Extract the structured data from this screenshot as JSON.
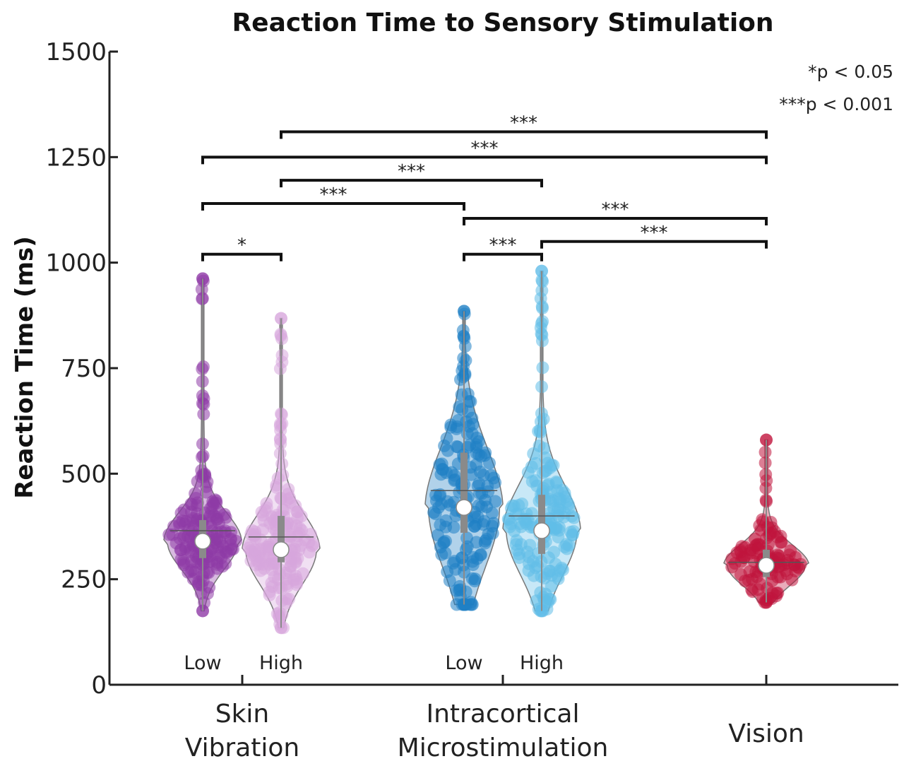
{
  "chart_data": {
    "type": "violin",
    "title": "Reaction Time to Sensory Stimulation",
    "ylabel": "Reaction Time (ms)",
    "xlabel": "",
    "ylim": [
      0,
      1500
    ],
    "yticks": [
      0,
      250,
      500,
      750,
      1000,
      1250,
      1500
    ],
    "groups": [
      {
        "label": "Skin\nVibration",
        "conditions": [
          "Low",
          "High"
        ]
      },
      {
        "label": "Intracortical\nMicrostimulation",
        "conditions": [
          "Low",
          "High"
        ]
      },
      {
        "label": "Vision",
        "conditions": []
      }
    ],
    "series": [
      {
        "group": "Skin Vibration",
        "condition": "Low",
        "color": "#8e3aa6",
        "median": 340,
        "mean": 365,
        "q1": 300,
        "q3": 390,
        "min": 175,
        "max": 962
      },
      {
        "group": "Skin Vibration",
        "condition": "High",
        "color": "#d7a6dc",
        "median": 320,
        "mean": 350,
        "q1": 290,
        "q3": 400,
        "min": 135,
        "max": 868
      },
      {
        "group": "Intracortical Microstimulation",
        "condition": "Low",
        "color": "#1f7fc4",
        "median": 420,
        "mean": 460,
        "q1": 360,
        "q3": 550,
        "min": 190,
        "max": 885
      },
      {
        "group": "Intracortical Microstimulation",
        "condition": "High",
        "color": "#61bde8",
        "median": 365,
        "mean": 400,
        "q1": 310,
        "q3": 450,
        "min": 175,
        "max": 980
      },
      {
        "group": "Vision",
        "condition": "",
        "color": "#c0143c",
        "median": 283,
        "mean": 290,
        "q1": 255,
        "q3": 320,
        "min": 195,
        "max": 580
      }
    ],
    "significance": [
      {
        "from": 0,
        "to": 1,
        "y": 1020,
        "label": "*"
      },
      {
        "from": 2,
        "to": 3,
        "y": 1020,
        "label": "***"
      },
      {
        "from": 3,
        "to": 4,
        "y": 1050,
        "label": "***"
      },
      {
        "from": 2,
        "to": 4,
        "y": 1105,
        "label": "***"
      },
      {
        "from": 0,
        "to": 2,
        "y": 1140,
        "label": "***"
      },
      {
        "from": 1,
        "to": 3,
        "y": 1195,
        "label": "***"
      },
      {
        "from": 0,
        "to": 4,
        "y": 1250,
        "label": "***"
      },
      {
        "from": 1,
        "to": 4,
        "y": 1310,
        "label": "***"
      }
    ],
    "legend": [
      "*p < 0.05",
      "***p < 0.001"
    ],
    "legend_position": "top-right"
  }
}
